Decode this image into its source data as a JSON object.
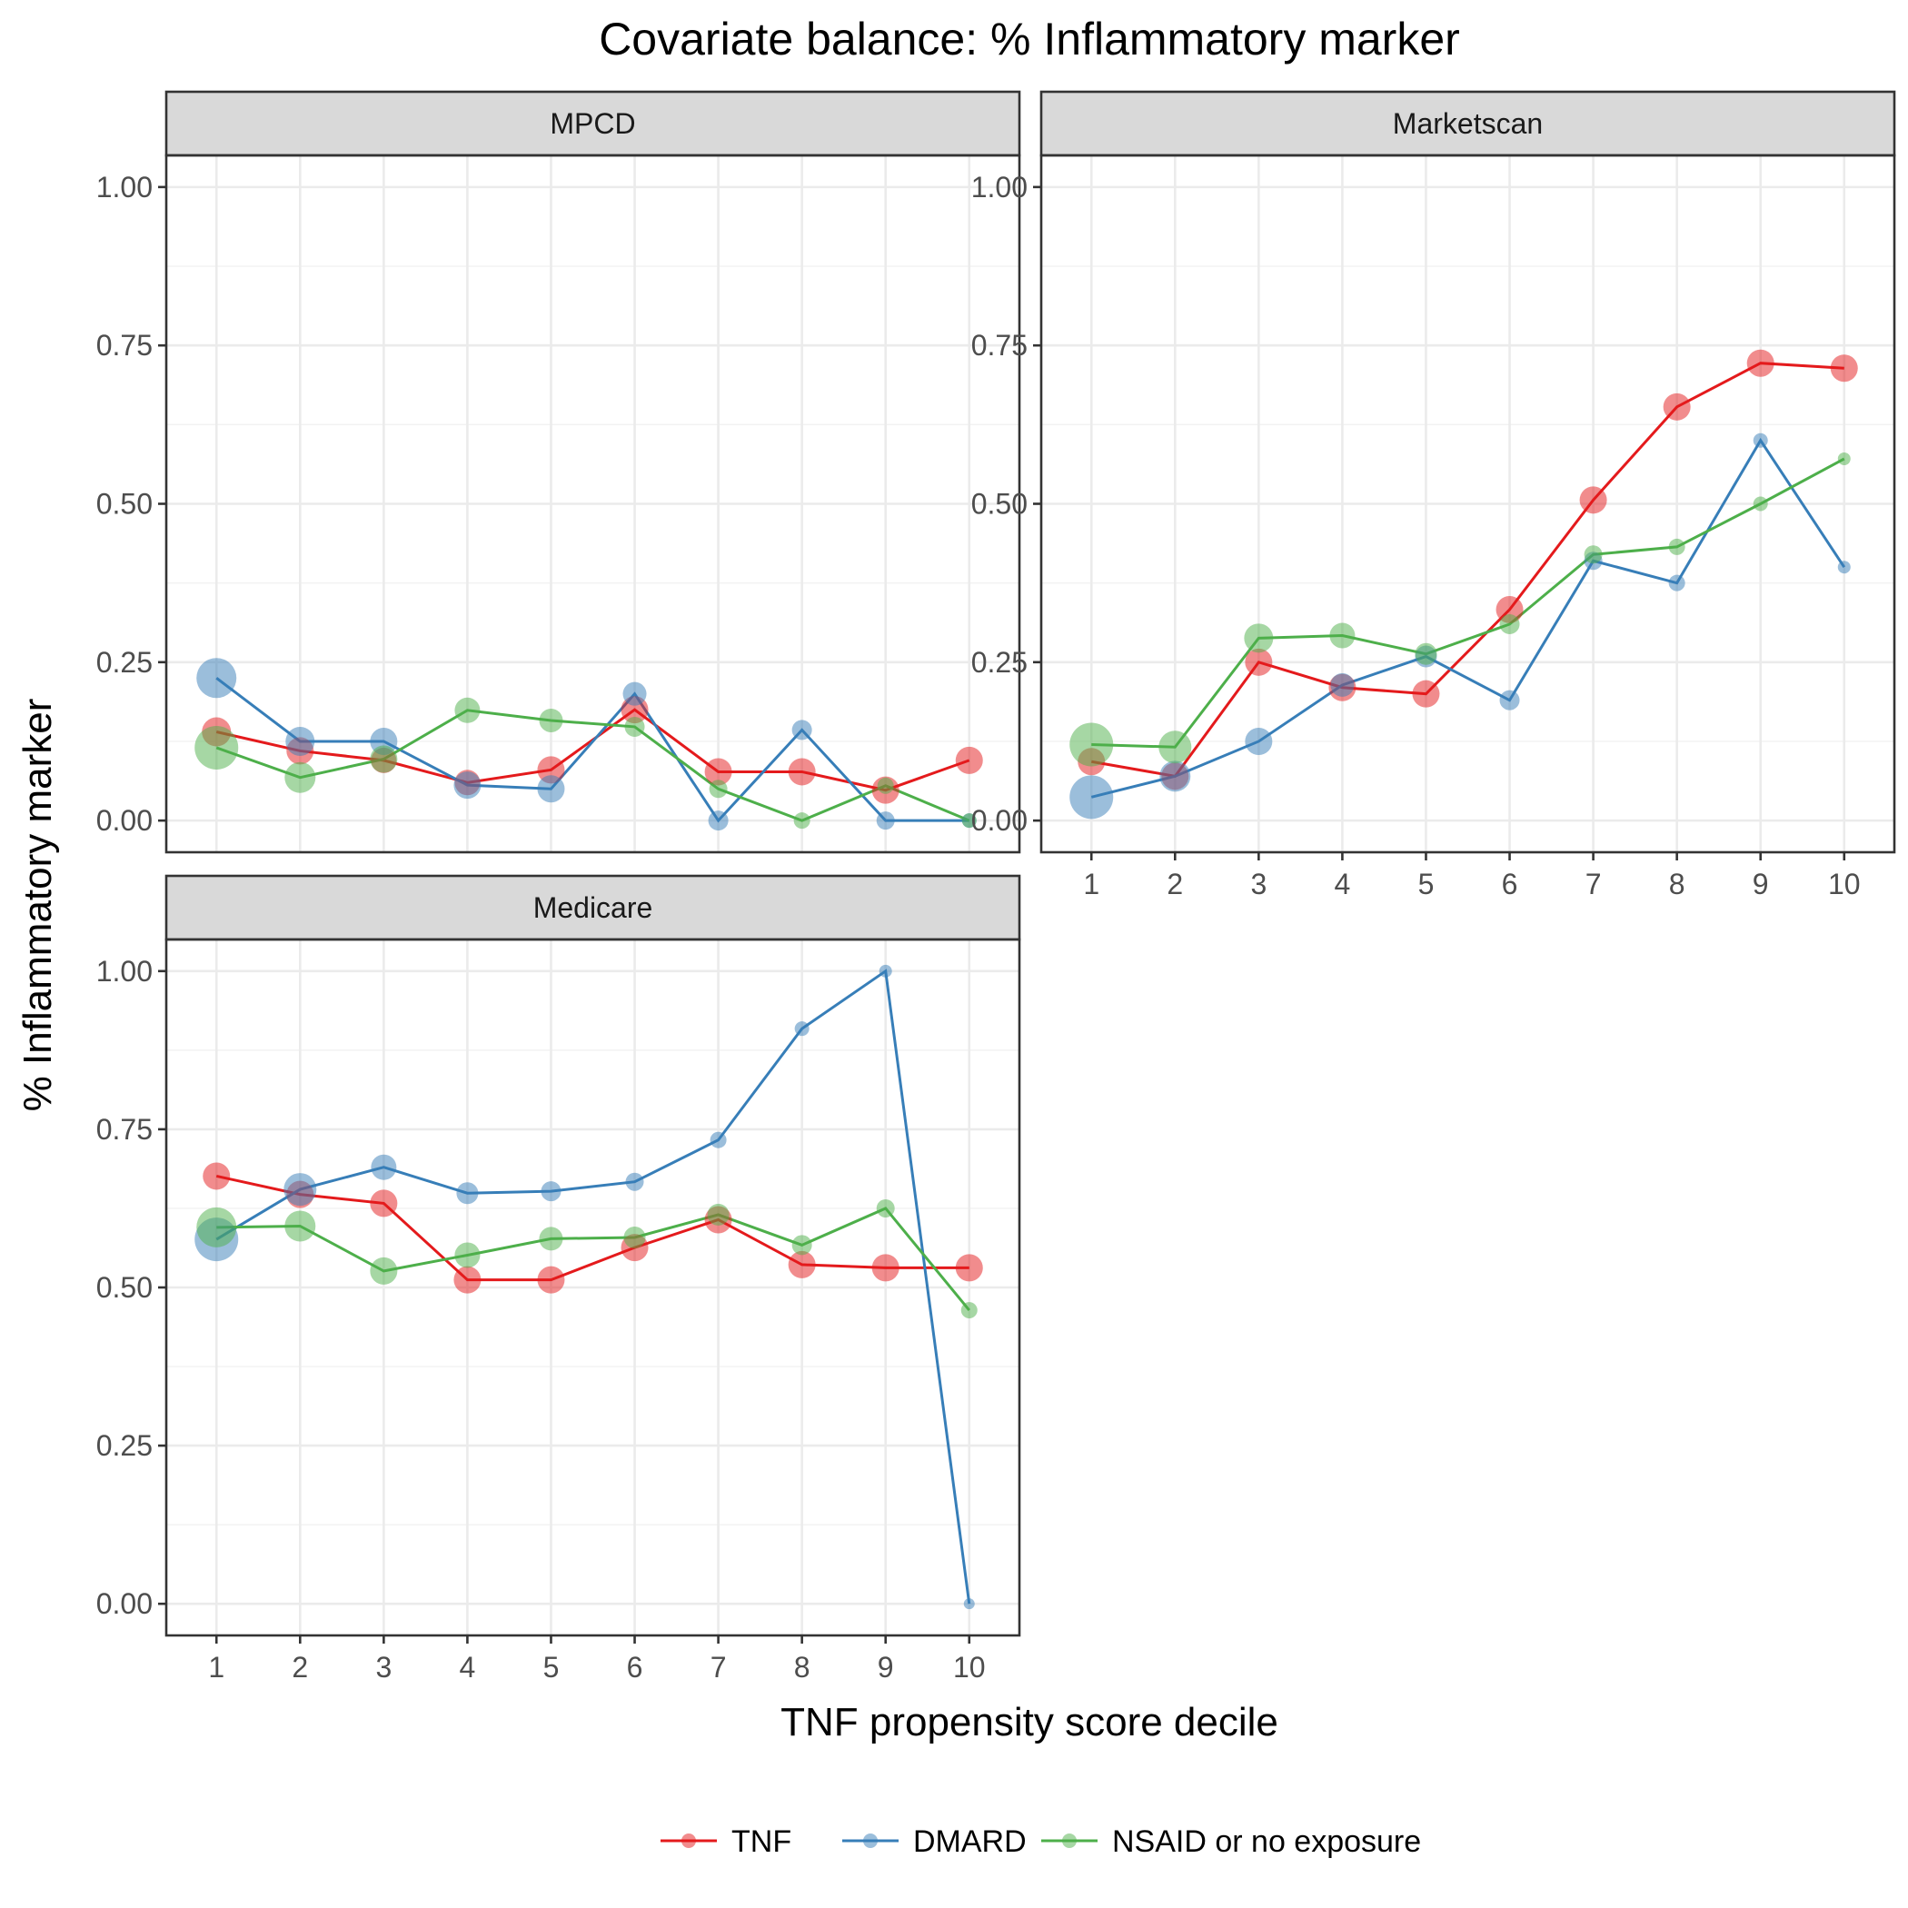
{
  "chart_data": {
    "type": "line",
    "title": "Covariate balance: % Inflammatory marker",
    "xlabel": "TNF propensity score decile",
    "ylabel": "% Inflammatory marker",
    "x": [
      1,
      2,
      3,
      4,
      5,
      6,
      7,
      8,
      9,
      10
    ],
    "x_tick_labels": [
      "1",
      "2",
      "3",
      "4",
      "5",
      "6",
      "7",
      "8",
      "9",
      "10"
    ],
    "y_tick_labels": [
      "0.00",
      "0.25",
      "0.50",
      "0.75",
      "1.00"
    ],
    "y_ticks": [
      0,
      0.25,
      0.5,
      0.75,
      1.0
    ],
    "ylim": [
      -0.05,
      1.05
    ],
    "xlim": [
      0.4,
      10.6
    ],
    "grid": true,
    "legend_position": "bottom",
    "series_colors": {
      "TNF": "#e41a1c",
      "DMARD": "#377eb8",
      "NSAID or no exposure": "#4daf4a"
    },
    "legend": [
      "TNF",
      "DMARD",
      "NSAID or no exposure"
    ],
    "panels": [
      {
        "name": "MPCD",
        "series": [
          {
            "name": "TNF",
            "values": [
              0.14,
              0.11,
              0.095,
              0.06,
              0.08,
              0.175,
              0.077,
              0.077,
              0.048,
              0.095
            ],
            "sizes": [
              16,
              15,
              14,
              14,
              15,
              15,
              15,
              15,
              15,
              15
            ]
          },
          {
            "name": "DMARD",
            "values": [
              0.225,
              0.125,
              0.125,
              0.056,
              0.05,
              0.2,
              0.0,
              0.143,
              0.0,
              0.0
            ],
            "sizes": [
              22,
              16,
              15,
              15,
              15,
              13,
              11,
              11,
              10,
              8
            ]
          },
          {
            "name": "NSAID or no exposure",
            "values": [
              0.115,
              0.068,
              0.097,
              0.174,
              0.158,
              0.148,
              0.05,
              0.0,
              0.055,
              0.0
            ],
            "sizes": [
              24,
              17,
              15,
              14,
              13,
              11,
              10,
              9,
              9,
              8
            ]
          }
        ]
      },
      {
        "name": "Marketscan",
        "series": [
          {
            "name": "TNF",
            "values": [
              0.093,
              0.07,
              0.25,
              0.21,
              0.2,
              0.333,
              0.506,
              0.653,
              0.722,
              0.714
            ],
            "sizes": [
              15,
              15,
              15,
              15,
              15,
              15,
              15,
              15,
              15,
              15
            ]
          },
          {
            "name": "DMARD",
            "values": [
              0.037,
              0.07,
              0.125,
              0.214,
              0.259,
              0.19,
              0.41,
              0.375,
              0.6,
              0.4
            ],
            "sizes": [
              24,
              17,
              15,
              13,
              12,
              11,
              10,
              9,
              8,
              7
            ]
          },
          {
            "name": "NSAID or no exposure",
            "values": [
              0.12,
              0.116,
              0.288,
              0.292,
              0.263,
              0.31,
              0.42,
              0.432,
              0.5,
              0.571
            ],
            "sizes": [
              24,
              18,
              16,
              14,
              12,
              11,
              10,
              9,
              8,
              7
            ]
          }
        ]
      },
      {
        "name": "Medicare",
        "series": [
          {
            "name": "TNF",
            "values": [
              0.676,
              0.647,
              0.633,
              0.512,
              0.512,
              0.563,
              0.607,
              0.536,
              0.531,
              0.531
            ],
            "sizes": [
              15,
              15,
              15,
              15,
              15,
              15,
              15,
              15,
              15,
              15
            ]
          },
          {
            "name": "DMARD",
            "values": [
              0.576,
              0.655,
              0.69,
              0.649,
              0.652,
              0.667,
              0.733,
              0.909,
              1.0,
              0.0
            ],
            "sizes": [
              24,
              18,
              14,
              12,
              11,
              10,
              9,
              8,
              7,
              6
            ]
          },
          {
            "name": "NSAID or no exposure",
            "values": [
              0.595,
              0.597,
              0.526,
              0.551,
              0.577,
              0.579,
              0.615,
              0.567,
              0.625,
              0.464
            ],
            "sizes": [
              22,
              17,
              15,
              14,
              13,
              12,
              12,
              11,
              10,
              9
            ]
          }
        ]
      }
    ]
  }
}
